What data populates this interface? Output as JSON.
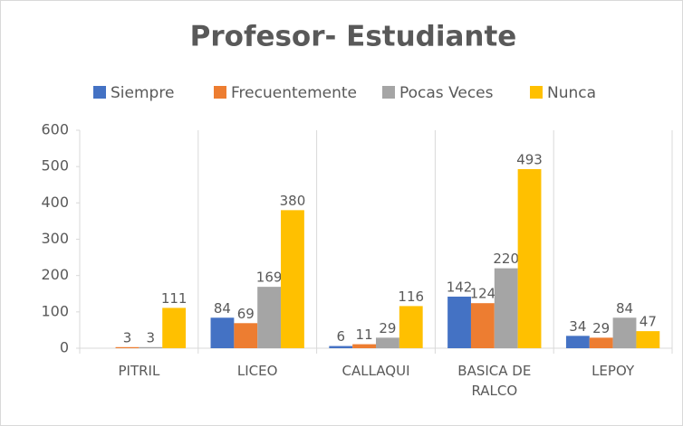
{
  "chart_data": {
    "type": "bar",
    "title": "Profesor- Estudiante",
    "categories": [
      "PITRIL",
      "LICEO",
      "CALLAQUI",
      "BASICA DE RALCO",
      "LEPOY"
    ],
    "series": [
      {
        "name": "Siempre",
        "color": "#4472c4",
        "values": [
          null,
          84,
          6,
          142,
          34
        ]
      },
      {
        "name": "Frecuentemente",
        "color": "#ed7d31",
        "values": [
          3,
          69,
          11,
          124,
          29
        ]
      },
      {
        "name": "Pocas Veces",
        "color": "#a5a5a5",
        "values": [
          3,
          169,
          29,
          220,
          84
        ]
      },
      {
        "name": "Nunca",
        "color": "#ffc000",
        "values": [
          111,
          380,
          116,
          493,
          47
        ]
      }
    ],
    "ylim": [
      0,
      600
    ],
    "yticks": [
      0,
      100,
      200,
      300,
      400,
      500,
      600
    ],
    "legend": "top"
  }
}
